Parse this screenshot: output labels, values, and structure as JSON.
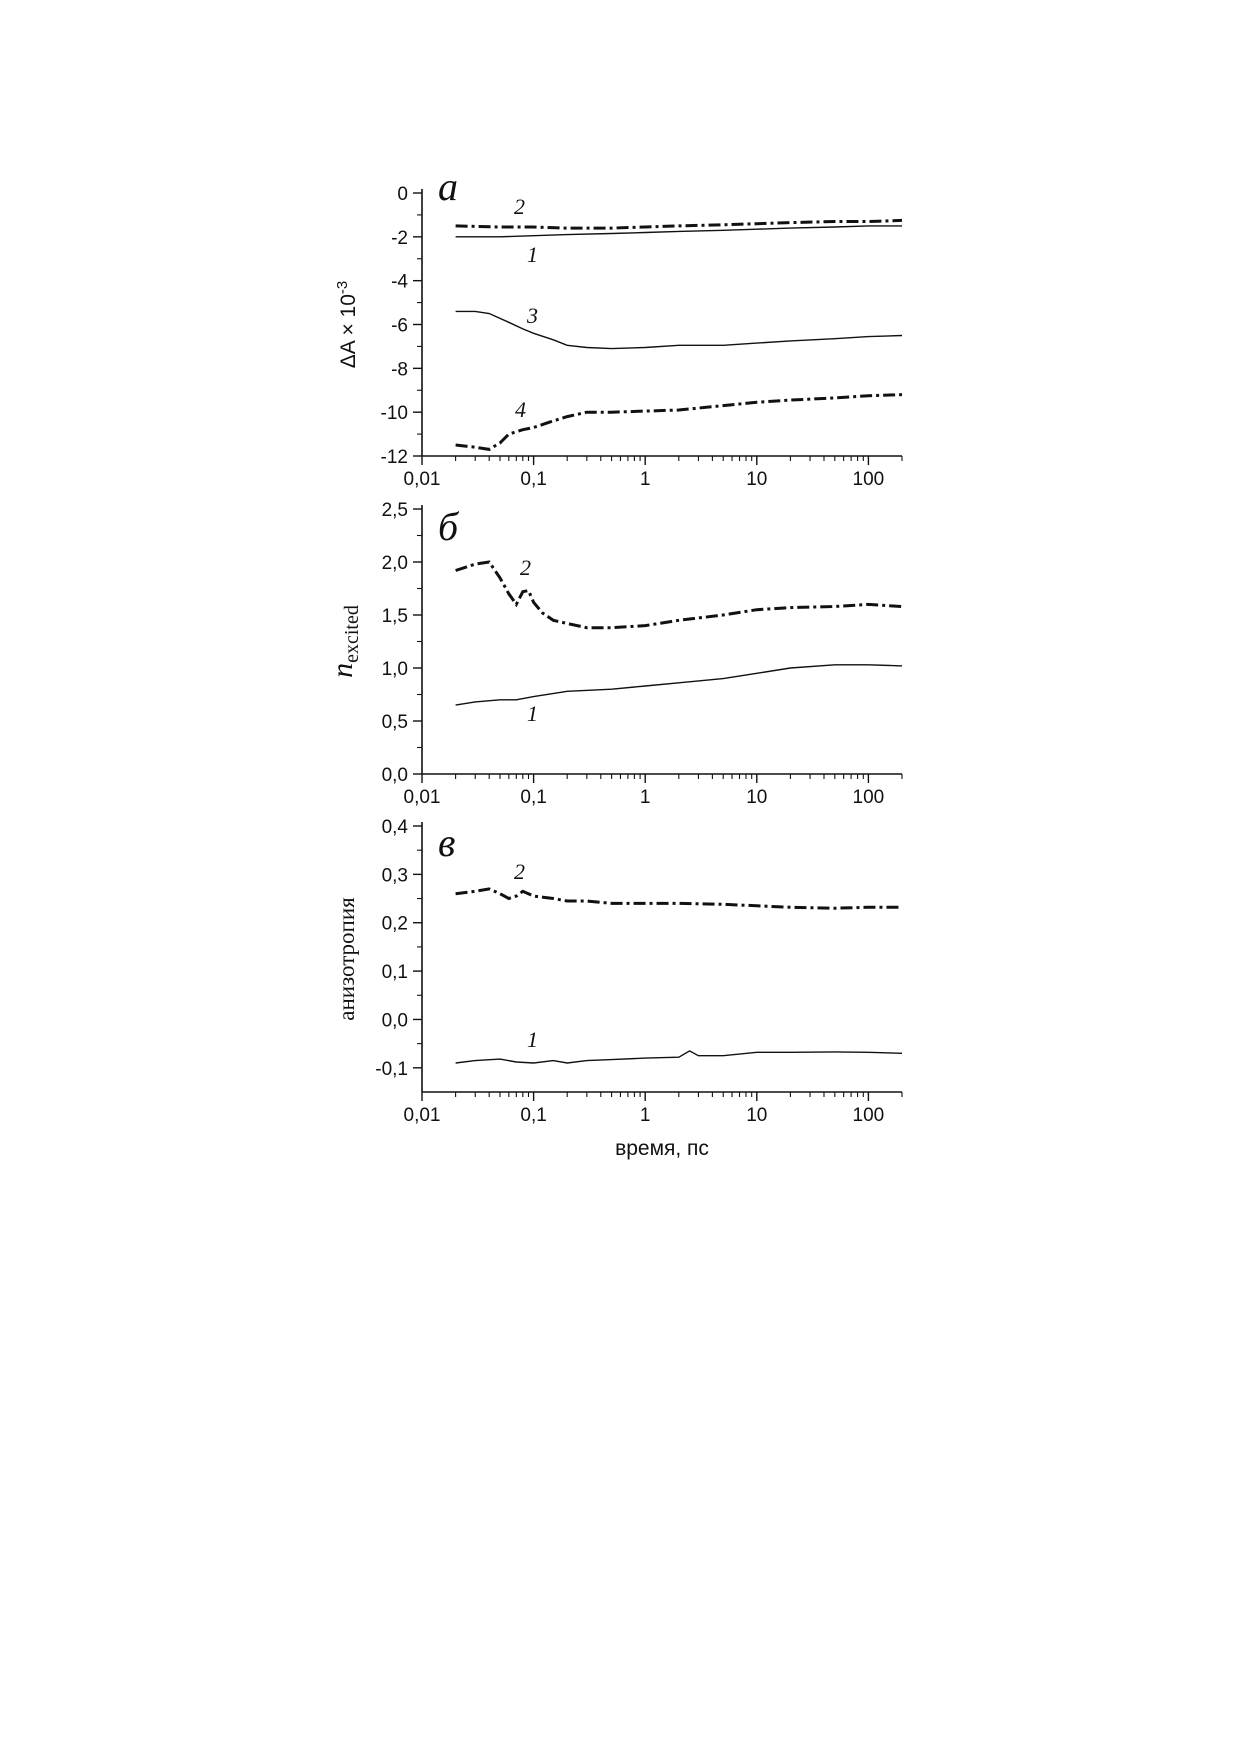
{
  "chart_data": [
    {
      "type": "line",
      "panel_label": "а",
      "ylabel": "ΔA × 10",
      "ylabel_exp": "-3",
      "xlabel": "",
      "xscale": "log",
      "xlim": [
        0.01,
        200
      ],
      "ylim": [
        -12,
        0
      ],
      "xticks": [
        0.01,
        0.1,
        1,
        10,
        100
      ],
      "xtick_labels": [
        "0,01",
        "0,1",
        "1",
        "10",
        "100"
      ],
      "yticks": [
        0,
        -2,
        -4,
        -6,
        -8,
        -10,
        -12
      ],
      "ytick_labels": [
        "0",
        "-2",
        "-4",
        "-6",
        "-8",
        "-10",
        "-12"
      ],
      "series": [
        {
          "name": "1",
          "style": "solid",
          "x": [
            0.02,
            0.05,
            0.1,
            0.2,
            0.5,
            1,
            2,
            5,
            10,
            20,
            50,
            100,
            200
          ],
          "y": [
            -2.0,
            -2.0,
            -1.95,
            -1.9,
            -1.85,
            -1.8,
            -1.75,
            -1.7,
            -1.65,
            -1.6,
            -1.55,
            -1.5,
            -1.5
          ]
        },
        {
          "name": "2",
          "style": "dashdot",
          "x": [
            0.02,
            0.05,
            0.1,
            0.2,
            0.5,
            1,
            2,
            5,
            10,
            20,
            50,
            100,
            200
          ],
          "y": [
            -1.5,
            -1.55,
            -1.55,
            -1.6,
            -1.6,
            -1.55,
            -1.5,
            -1.45,
            -1.4,
            -1.35,
            -1.3,
            -1.3,
            -1.25
          ]
        },
        {
          "name": "3",
          "style": "solid",
          "x": [
            0.02,
            0.03,
            0.04,
            0.06,
            0.08,
            0.1,
            0.15,
            0.2,
            0.3,
            0.5,
            1,
            2,
            5,
            10,
            20,
            50,
            100,
            200
          ],
          "y": [
            -5.4,
            -5.4,
            -5.5,
            -5.9,
            -6.2,
            -6.4,
            -6.7,
            -6.95,
            -7.05,
            -7.1,
            -7.05,
            -6.95,
            -6.95,
            -6.85,
            -6.75,
            -6.65,
            -6.55,
            -6.5
          ]
        },
        {
          "name": "4",
          "style": "dashdot",
          "x": [
            0.02,
            0.03,
            0.04,
            0.05,
            0.06,
            0.08,
            0.1,
            0.15,
            0.2,
            0.3,
            0.5,
            1,
            2,
            5,
            10,
            20,
            50,
            100,
            200
          ],
          "y": [
            -11.5,
            -11.6,
            -11.7,
            -11.4,
            -11.0,
            -10.8,
            -10.7,
            -10.4,
            -10.2,
            -10.0,
            -10.0,
            -9.95,
            -9.9,
            -9.7,
            -9.55,
            -9.45,
            -9.35,
            -9.25,
            -9.2
          ]
        }
      ]
    },
    {
      "type": "line",
      "panel_label": "б",
      "ylabel": "n",
      "ylabel_sub": "excited",
      "xlabel": "",
      "xscale": "log",
      "xlim": [
        0.01,
        200
      ],
      "ylim": [
        0,
        2.5
      ],
      "xticks": [
        0.01,
        0.1,
        1,
        10,
        100
      ],
      "xtick_labels": [
        "0,01",
        "0,1",
        "1",
        "10",
        "100"
      ],
      "yticks": [
        0,
        0.5,
        1.0,
        1.5,
        2.0,
        2.5
      ],
      "ytick_labels": [
        "0,0",
        "0,5",
        "1,0",
        "1,5",
        "2,0",
        "2,5"
      ],
      "series": [
        {
          "name": "1",
          "style": "solid",
          "x": [
            0.02,
            0.03,
            0.05,
            0.07,
            0.1,
            0.2,
            0.5,
            1,
            2,
            5,
            10,
            20,
            50,
            100,
            200
          ],
          "y": [
            0.65,
            0.68,
            0.7,
            0.7,
            0.73,
            0.78,
            0.8,
            0.83,
            0.86,
            0.9,
            0.95,
            1.0,
            1.03,
            1.03,
            1.02
          ]
        },
        {
          "name": "2",
          "style": "dashdot",
          "x": [
            0.02,
            0.03,
            0.04,
            0.05,
            0.06,
            0.07,
            0.08,
            0.09,
            0.1,
            0.12,
            0.15,
            0.2,
            0.3,
            0.5,
            1,
            2,
            5,
            10,
            20,
            50,
            100,
            200
          ],
          "y": [
            1.92,
            1.98,
            2.0,
            1.85,
            1.7,
            1.6,
            1.72,
            1.73,
            1.62,
            1.52,
            1.45,
            1.42,
            1.38,
            1.38,
            1.4,
            1.45,
            1.5,
            1.55,
            1.57,
            1.58,
            1.6,
            1.58
          ]
        }
      ]
    },
    {
      "type": "line",
      "panel_label": "в",
      "ylabel": "анизотропия",
      "xlabel": "время, пс",
      "xscale": "log",
      "xlim": [
        0.01,
        200
      ],
      "ylim": [
        -0.15,
        0.4
      ],
      "xticks": [
        0.01,
        0.1,
        1,
        10,
        100
      ],
      "xtick_labels": [
        "0,01",
        "0,1",
        "1",
        "10",
        "100"
      ],
      "yticks": [
        -0.1,
        0.0,
        0.1,
        0.2,
        0.3,
        0.4
      ],
      "ytick_labels": [
        "-0,1",
        "0,0",
        "0,1",
        "0,2",
        "0,3",
        "0,4"
      ],
      "series": [
        {
          "name": "1",
          "style": "solid",
          "x": [
            0.02,
            0.03,
            0.05,
            0.07,
            0.1,
            0.15,
            0.2,
            0.3,
            0.5,
            1,
            2,
            2.5,
            3,
            5,
            10,
            20,
            50,
            100,
            200
          ],
          "y": [
            -0.09,
            -0.085,
            -0.082,
            -0.088,
            -0.09,
            -0.085,
            -0.09,
            -0.085,
            -0.083,
            -0.08,
            -0.078,
            -0.065,
            -0.075,
            -0.075,
            -0.068,
            -0.068,
            -0.067,
            -0.068,
            -0.07
          ]
        },
        {
          "name": "2",
          "style": "dashdot",
          "x": [
            0.02,
            0.03,
            0.04,
            0.05,
            0.06,
            0.07,
            0.08,
            0.1,
            0.15,
            0.2,
            0.3,
            0.5,
            1,
            2,
            5,
            10,
            20,
            50,
            100,
            200
          ],
          "y": [
            0.26,
            0.265,
            0.27,
            0.26,
            0.25,
            0.255,
            0.265,
            0.255,
            0.25,
            0.245,
            0.245,
            0.24,
            0.24,
            0.24,
            0.238,
            0.235,
            0.232,
            0.23,
            0.232,
            0.232
          ]
        }
      ]
    }
  ]
}
